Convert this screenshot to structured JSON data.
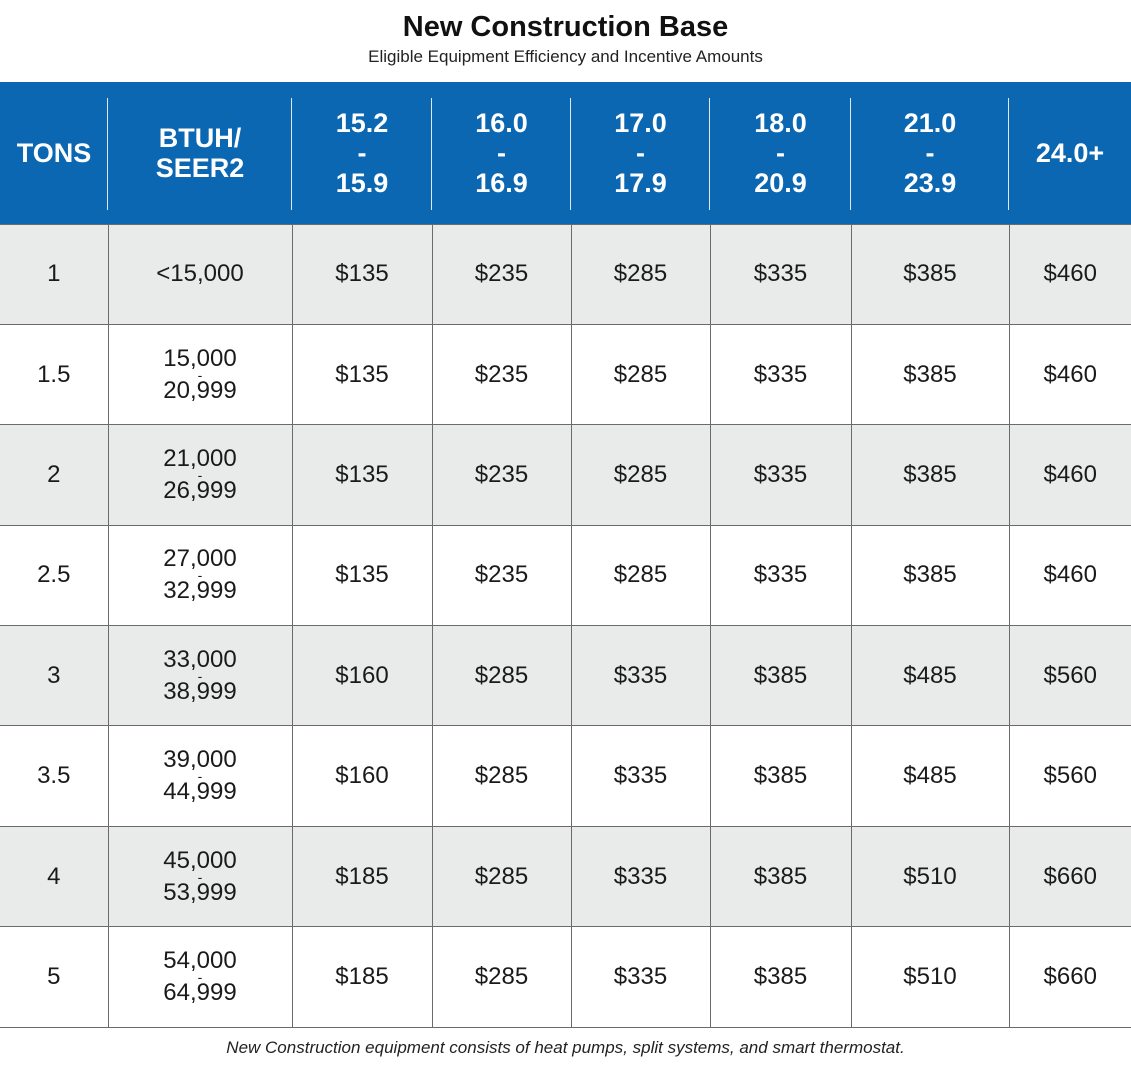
{
  "title": "New Construction Base",
  "subtitle": "Eligible Equipment Efficiency and Incentive Amounts",
  "header": {
    "tons": "TONS",
    "btuh_line1": "BTUH/",
    "btuh_line2": "SEER2",
    "ranges": [
      {
        "low": "15.2",
        "dash": "-",
        "high": "15.9"
      },
      {
        "low": "16.0",
        "dash": "-",
        "high": "16.9"
      },
      {
        "low": "17.0",
        "dash": "-",
        "high": "17.9"
      },
      {
        "low": "18.0",
        "dash": "-",
        "high": "20.9"
      },
      {
        "low": "21.0",
        "dash": "-",
        "high": "23.9"
      }
    ],
    "last": "24.0+"
  },
  "rows": [
    {
      "tons": "1",
      "btuh_low": "<15,000",
      "btuh_dash": "",
      "btuh_high": "",
      "values": [
        "$135",
        "$235",
        "$285",
        "$335",
        "$385",
        "$460"
      ]
    },
    {
      "tons": "1.5",
      "btuh_low": "15,000",
      "btuh_dash": "-",
      "btuh_high": "20,999",
      "values": [
        "$135",
        "$235",
        "$285",
        "$335",
        "$385",
        "$460"
      ]
    },
    {
      "tons": "2",
      "btuh_low": "21,000",
      "btuh_dash": "-",
      "btuh_high": "26,999",
      "values": [
        "$135",
        "$235",
        "$285",
        "$335",
        "$385",
        "$460"
      ]
    },
    {
      "tons": "2.5",
      "btuh_low": "27,000",
      "btuh_dash": "-",
      "btuh_high": "32,999",
      "values": [
        "$135",
        "$235",
        "$285",
        "$335",
        "$385",
        "$460"
      ]
    },
    {
      "tons": "3",
      "btuh_low": "33,000",
      "btuh_dash": "-",
      "btuh_high": "38,999",
      "values": [
        "$160",
        "$285",
        "$335",
        "$385",
        "$485",
        "$560"
      ]
    },
    {
      "tons": "3.5",
      "btuh_low": "39,000",
      "btuh_dash": "-",
      "btuh_high": "44,999",
      "values": [
        "$160",
        "$285",
        "$335",
        "$385",
        "$485",
        "$560"
      ]
    },
    {
      "tons": "4",
      "btuh_low": "45,000",
      "btuh_dash": "-",
      "btuh_high": "53,999",
      "values": [
        "$185",
        "$285",
        "$335",
        "$385",
        "$510",
        "$660"
      ]
    },
    {
      "tons": "5",
      "btuh_low": "54,000",
      "btuh_dash": "-",
      "btuh_high": "64,999",
      "values": [
        "$185",
        "$285",
        "$335",
        "$385",
        "$510",
        "$660"
      ]
    }
  ],
  "footnote": "New Construction equipment consists of heat pumps, split systems, and smart thermostat.",
  "colors": {
    "header_bg": "#0b67b2",
    "row_shade": "#e9eaea"
  }
}
